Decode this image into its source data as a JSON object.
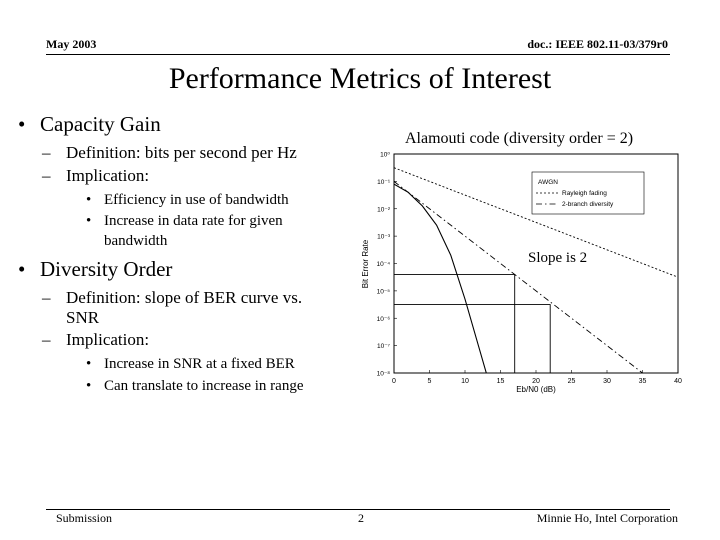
{
  "header": {
    "date": "May 2003",
    "doc_id": "doc.: IEEE 802.11-03/379r0"
  },
  "title": "Performance Metrics of Interest",
  "bullets": [
    {
      "text": "Capacity Gain",
      "sub": [
        {
          "text": "Definition: bits per second per Hz",
          "sub": []
        },
        {
          "text": "Implication:",
          "sub": [
            "Efficiency in use of bandwidth",
            "Increase in data rate for given",
            "bandwidth"
          ]
        }
      ]
    },
    {
      "text": "Diversity Order",
      "sub": [
        {
          "text": "Definition: slope of BER curve vs.",
          "cont": "SNR",
          "sub": []
        },
        {
          "text": "Implication:",
          "sub": [
            "Increase in SNR at a fixed BER",
            "Can translate to increase in range"
          ]
        }
      ]
    }
  ],
  "chart_caption": "Alamouti code (diversity order = 2)",
  "chart_data": {
    "type": "line",
    "title": "",
    "xlabel": "Eb/N0 (dB)",
    "ylabel": "Bit Error Rate",
    "xlim": [
      0,
      40
    ],
    "ylim_exponent": [
      -8,
      0
    ],
    "x_ticks": [
      "0",
      "5",
      "10",
      "15",
      "20",
      "25",
      "30",
      "35",
      "40"
    ],
    "y_ticks": [
      "10⁰",
      "10⁻¹",
      "10⁻²",
      "10⁻³",
      "10⁻⁴",
      "10⁻⁵",
      "10⁻⁶",
      "10⁻⁷",
      "10⁻⁸"
    ],
    "legend": [
      "AWGN",
      "Rayleigh fading",
      "2-branch diversity"
    ],
    "legend_position": "top-right",
    "series": [
      {
        "name": "AWGN",
        "x": [
          0,
          2,
          4,
          6,
          8,
          10,
          12,
          13
        ],
        "log10_y": [
          -1.1,
          -1.4,
          -1.9,
          -2.6,
          -3.7,
          -5.3,
          -7.1,
          -8.0
        ]
      },
      {
        "name": "Rayleigh fading",
        "x": [
          0,
          10,
          20,
          30,
          40
        ],
        "log10_y": [
          -0.5,
          -1.5,
          -2.5,
          -3.5,
          -4.5
        ]
      },
      {
        "name": "2-branch diversity",
        "x": [
          0,
          10,
          20,
          30,
          40
        ],
        "log10_y": [
          -1.0,
          -3.0,
          -5.0,
          -7.0,
          -9.0
        ]
      }
    ],
    "annotation": "Slope is 2",
    "reference_levels": [
      {
        "log10_y": -4.4,
        "x": 17
      },
      {
        "log10_y": -5.5,
        "x": 22
      }
    ]
  },
  "footer": {
    "left": "Submission",
    "page": "2",
    "right": "Minnie Ho, Intel Corporation"
  }
}
